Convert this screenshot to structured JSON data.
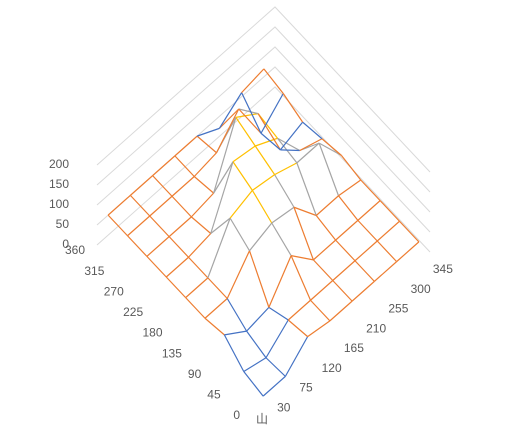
{
  "chart_data": {
    "type": "surface",
    "categories": [
      "0",
      "45",
      "90",
      "135",
      "180",
      "225",
      "270",
      "315",
      "360"
    ],
    "series": [
      {
        "name": "30",
        "values": [
          10,
          20,
          60,
          50,
          50,
          50,
          50,
          50,
          50
        ]
      },
      {
        "name": "75",
        "values": [
          10,
          5,
          20,
          50,
          50,
          50,
          50,
          50,
          50
        ]
      },
      {
        "name": "120",
        "values": [
          60,
          50,
          30,
          120,
          150,
          60,
          50,
          50,
          50
        ]
      },
      {
        "name": "165",
        "values": [
          50,
          50,
          110,
          140,
          170,
          190,
          60,
          50,
          50
        ]
      },
      {
        "name": "210",
        "values": [
          50,
          50,
          50,
          130,
          160,
          180,
          200,
          60,
          50
        ]
      },
      {
        "name": "255",
        "values": [
          50,
          50,
          50,
          60,
          140,
          150,
          160,
          120,
          20
        ]
      },
      {
        "name": "300",
        "values": [
          50,
          50,
          50,
          60,
          140,
          70,
          20,
          10,
          60
        ]
      },
      {
        "name": "345",
        "values": [
          50,
          50,
          50,
          50,
          60,
          50,
          40,
          60,
          70
        ]
      }
    ],
    "zlim": [
      0,
      200
    ],
    "zticks": [
      0,
      50,
      100,
      150,
      200
    ],
    "band_colors": [
      "#4472c4",
      "#ed7d31",
      "#a5a5a5",
      "#ffc000"
    ],
    "axis_label": "山"
  }
}
